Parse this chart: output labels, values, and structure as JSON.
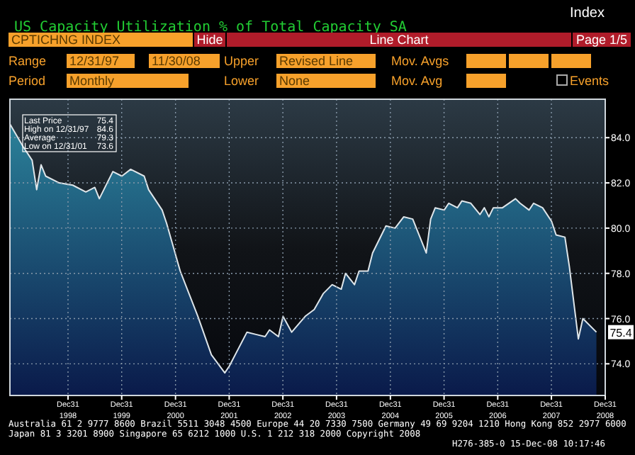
{
  "chart_data": {
    "type": "area",
    "title": "US Capacity Utilization % of Total Capacity SA",
    "x": [
      "1997-12",
      "1998-03",
      "1998-05",
      "1998-06",
      "1998-07",
      "1998-08",
      "1998-11",
      "1999-02",
      "1999-05",
      "1999-07",
      "1999-08",
      "1999-10",
      "1999-11",
      "2000-01",
      "2000-03",
      "2000-06",
      "2000-07",
      "2000-10",
      "2000-11",
      "2001-02",
      "2001-06",
      "2001-09",
      "2001-12",
      "2002-01",
      "2002-05",
      "2002-07",
      "2002-09",
      "2002-10",
      "2002-12",
      "2003-01",
      "2003-03",
      "2003-06",
      "2003-08",
      "2003-10",
      "2003-12",
      "2004-02",
      "2004-03",
      "2004-05",
      "2004-06",
      "2004-08",
      "2004-09",
      "2004-12",
      "2005-02",
      "2005-04",
      "2005-06",
      "2005-09",
      "2005-10",
      "2005-11",
      "2006-01",
      "2006-02",
      "2006-04",
      "2006-05",
      "2006-07",
      "2006-09",
      "2006-10",
      "2006-11",
      "2006-12",
      "2007-02",
      "2007-05",
      "2007-06",
      "2007-08",
      "2007-09",
      "2007-11",
      "2008-01",
      "2008-02",
      "2008-04",
      "2008-05",
      "2008-07",
      "2008-08",
      "2008-11"
    ],
    "series": [
      {
        "color": "#2b8199",
        "values": [
          84.6,
          83.6,
          83.0,
          81.7,
          82.8,
          82.3,
          82.0,
          81.9,
          81.6,
          81.8,
          81.3,
          82.1,
          82.5,
          82.3,
          82.6,
          82.3,
          81.7,
          80.8,
          80.2,
          78.1,
          76.1,
          74.4,
          73.6,
          73.9,
          75.4,
          75.3,
          75.2,
          75.5,
          75.2,
          76.1,
          75.4,
          76.1,
          76.4,
          77.1,
          77.5,
          77.3,
          78.0,
          77.5,
          78.1,
          78.1,
          78.9,
          80.1,
          80.0,
          80.5,
          80.4,
          78.9,
          80.4,
          80.9,
          80.8,
          81.1,
          80.9,
          81.2,
          81.1,
          80.6,
          80.9,
          80.5,
          80.9,
          80.9,
          81.3,
          81.1,
          80.8,
          81.1,
          80.9,
          80.3,
          79.7,
          79.6,
          78.3,
          75.1,
          76.0,
          75.4
        ]
      }
    ],
    "xlim": [
      "1997-12-01",
      "2008-12-31"
    ],
    "xticks": [
      {
        "value": "1998-12-31",
        "label": "Dec31 1998"
      },
      {
        "value": "1999-12-31",
        "label": "Dec31 1999"
      },
      {
        "value": "2000-12-31",
        "label": "Dec31 2000"
      },
      {
        "value": "2001-12-31",
        "label": "Dec31 2001"
      },
      {
        "value": "2002-12-31",
        "label": "Dec31 2002"
      },
      {
        "value": "2003-12-31",
        "label": "Dec31 2003"
      },
      {
        "value": "2004-12-31",
        "label": "Dec31 2004"
      },
      {
        "value": "2005-12-31",
        "label": "Dec31 2005"
      },
      {
        "value": "2006-12-31",
        "label": "Dec31 2006"
      },
      {
        "value": "2007-12-31",
        "label": "Dec31 2007"
      },
      {
        "value": "2008-12-31",
        "label": "Dec31 2008"
      }
    ],
    "ylim": [
      72.6,
      85.7
    ],
    "yticks": [
      {
        "value": 74,
        "label": "74.0"
      },
      {
        "value": 76,
        "label": "76.0"
      },
      {
        "value": 78,
        "label": "78.0"
      },
      {
        "value": 80,
        "label": "80.0"
      },
      {
        "value": 82,
        "label": "82.0"
      },
      {
        "value": 84,
        "label": "84.0"
      }
    ],
    "grid": true,
    "annotations": [
      "Index",
      "CPTICHNG INDEX",
      "Hide",
      "Line Chart",
      "Page 1/5",
      "Range",
      "12/31/97",
      "11/30/08",
      "Upper",
      "Revised Line",
      "Mov. Avgs",
      "Period",
      "Monthly",
      "Lower",
      "None",
      "Mov. Avg",
      "Events",
      "Last Price 75.4",
      "High on 12/31/97 84.6",
      "Average 79.3",
      "Low on 12/31/01 73.6",
      "Australia 61 2 9777 8600 Brazil 5511 3048 4500 Europe 44 20 7330 7500 Germany 49 69 9204 1210 Hong Kong 852 2977 6000",
      "Japan 81 3 3201 8900    Singapore 65 6212 1000    U.S. 1 212 318 2000    Copyright 2008",
      "H276-385-0 15-Dec-08 10:17:46",
      {
        "text": "75.4",
        "x": "2008-11",
        "y": 75.4
      }
    ]
  }
}
